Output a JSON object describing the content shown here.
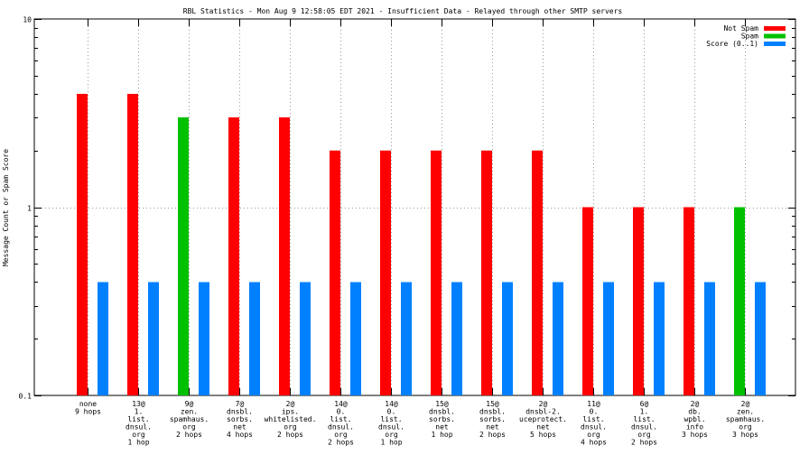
{
  "chart_data": {
    "type": "bar",
    "title": "RBL Statistics - Mon Aug  9 12:58:05 EDT 2021 - Insufficient Data - Relayed through other SMTP servers",
    "xlabel": "",
    "ylabel": "Message Count or Spam Score",
    "yscale": "log",
    "ylim": [
      0.1,
      10
    ],
    "yticks": [
      "0.1",
      "1",
      "10"
    ],
    "grid": true,
    "legend_position": "top-right",
    "categories": [
      [
        "none",
        "9 hops"
      ],
      [
        "13@",
        "1.",
        "list.",
        "dnsul.",
        "org",
        "1 hop"
      ],
      [
        "9@",
        "zen.",
        "spamhaus.",
        "org",
        "2 hops"
      ],
      [
        "7@",
        "dnsbl.",
        "sorbs.",
        "net",
        "4 hops"
      ],
      [
        "2@",
        "ips.",
        "whitelisted.",
        "org",
        "2 hops"
      ],
      [
        "14@",
        "0.",
        "list.",
        "dnsul.",
        "org",
        "2 hops"
      ],
      [
        "14@",
        "0.",
        "list.",
        "dnsul.",
        "org",
        "1 hop"
      ],
      [
        "15@",
        "dnsbl.",
        "sorbs.",
        "net",
        "1 hop"
      ],
      [
        "15@",
        "dnsbl.",
        "sorbs.",
        "net",
        "2 hops"
      ],
      [
        "2@",
        "dnsbl-2.",
        "uceprotect.",
        "net",
        "5 hops"
      ],
      [
        "11@",
        "0.",
        "list.",
        "dnsul.",
        "org",
        "4 hops"
      ],
      [
        "6@",
        "1.",
        "list.",
        "dnsul.",
        "org",
        "2 hops"
      ],
      [
        "2@",
        "db.",
        "wpbl.",
        "info",
        "3 hops"
      ],
      [
        "2@",
        "zen.",
        "spamhaus.",
        "org",
        "3 hops"
      ]
    ],
    "series": [
      {
        "name": "Not Spam",
        "color": "#ff0000",
        "values": [
          4,
          4,
          null,
          3,
          3,
          2,
          2,
          2,
          2,
          2,
          1,
          1,
          1,
          null
        ]
      },
      {
        "name": "Spam",
        "color": "#00c000",
        "values": [
          null,
          null,
          3,
          null,
          null,
          null,
          null,
          null,
          null,
          null,
          null,
          null,
          null,
          1
        ]
      },
      {
        "name": "Score (0..1)",
        "color": "#0080ff",
        "values": [
          0.4,
          0.4,
          0.4,
          0.4,
          0.4,
          0.4,
          0.4,
          0.4,
          0.4,
          0.4,
          0.4,
          0.4,
          0.4,
          0.4
        ]
      }
    ]
  }
}
